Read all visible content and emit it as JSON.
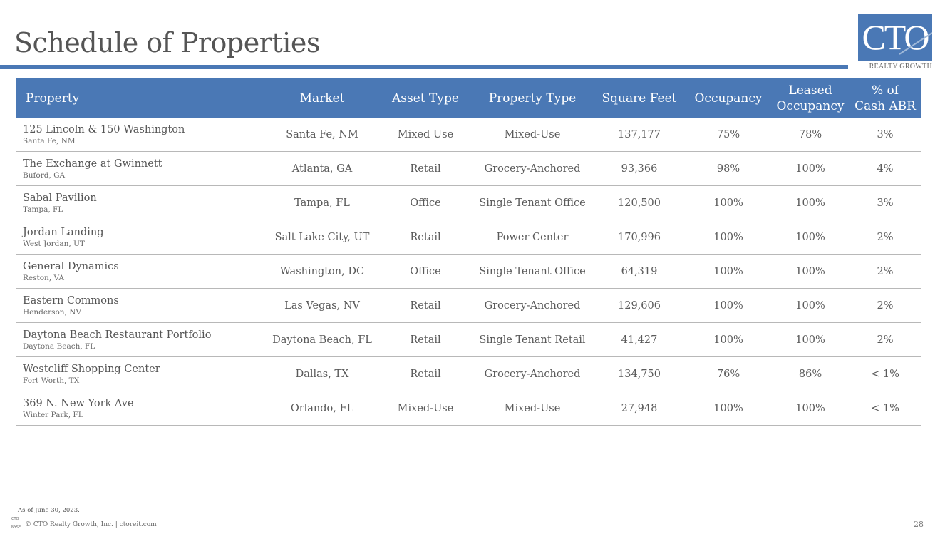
{
  "header": {
    "title": "Schedule of Properties",
    "logo": {
      "name": "CTO",
      "tagline": "REALTY GROWTH"
    }
  },
  "colors": {
    "accent": "#4a78b5",
    "rule": "#b8b8b8"
  },
  "table": {
    "columns": {
      "property": "Property",
      "market": "Market",
      "asset_type": "Asset Type",
      "property_type": "Property Type",
      "square_feet": "Square Feet",
      "occupancy": "Occupancy",
      "leased_occupancy_1": "Leased",
      "leased_occupancy_2": "Occupancy",
      "cash_abr_1": "% of",
      "cash_abr_2": "Cash ABR"
    },
    "rows": [
      {
        "name": "125 Lincoln & 150 Washington",
        "location": "Santa Fe, NM",
        "market": "Santa Fe, NM",
        "asset_type": "Mixed Use",
        "property_type": "Mixed-Use",
        "square_feet": "137,177",
        "occupancy": "75%",
        "leased": "78%",
        "abr": "3%"
      },
      {
        "name": "The Exchange at Gwinnett",
        "location": "Buford, GA",
        "market": "Atlanta, GA",
        "asset_type": "Retail",
        "property_type": "Grocery-Anchored",
        "square_feet": "93,366",
        "occupancy": "98%",
        "leased": "100%",
        "abr": "4%"
      },
      {
        "name": "Sabal Pavilion",
        "location": "Tampa, FL",
        "market": "Tampa, FL",
        "asset_type": "Office",
        "property_type": "Single Tenant Office",
        "square_feet": "120,500",
        "occupancy": "100%",
        "leased": "100%",
        "abr": "3%"
      },
      {
        "name": "Jordan Landing",
        "location": "West Jordan, UT",
        "market": "Salt Lake City, UT",
        "asset_type": "Retail",
        "property_type": "Power Center",
        "square_feet": "170,996",
        "occupancy": "100%",
        "leased": "100%",
        "abr": "2%"
      },
      {
        "name": "General Dynamics",
        "location": "Reston, VA",
        "market": "Washington, DC",
        "asset_type": "Office",
        "property_type": "Single Tenant Office",
        "square_feet": "64,319",
        "occupancy": "100%",
        "leased": "100%",
        "abr": "2%"
      },
      {
        "name": "Eastern Commons",
        "location": "Henderson, NV",
        "market": "Las Vegas, NV",
        "asset_type": "Retail",
        "property_type": "Grocery-Anchored",
        "square_feet": "129,606",
        "occupancy": "100%",
        "leased": "100%",
        "abr": "2%"
      },
      {
        "name": "Daytona Beach Restaurant Portfolio",
        "location": "Daytona Beach, FL",
        "market": "Daytona Beach, FL",
        "asset_type": "Retail",
        "property_type": "Single Tenant Retail",
        "square_feet": "41,427",
        "occupancy": "100%",
        "leased": "100%",
        "abr": "2%"
      },
      {
        "name": "Westcliff Shopping Center",
        "location": "Fort Worth, TX",
        "market": "Dallas, TX",
        "asset_type": "Retail",
        "property_type": "Grocery-Anchored",
        "square_feet": "134,750",
        "occupancy": "76%",
        "leased": "86%",
        "abr": "< 1%"
      },
      {
        "name": "369 N. New York Ave",
        "location": "Winter Park, FL",
        "market": "Orlando, FL",
        "asset_type": "Mixed-Use",
        "property_type": "Mixed-Use",
        "square_feet": "27,948",
        "occupancy": "100%",
        "leased": "100%",
        "abr": "< 1%"
      }
    ]
  },
  "footer": {
    "note": "As of June 30, 2023.",
    "mini_logo": "CTO",
    "mini_logo_sub": "NYSE",
    "copyright": "© CTO Realty Growth, Inc. | ctoreit.com",
    "page_number": "28"
  }
}
